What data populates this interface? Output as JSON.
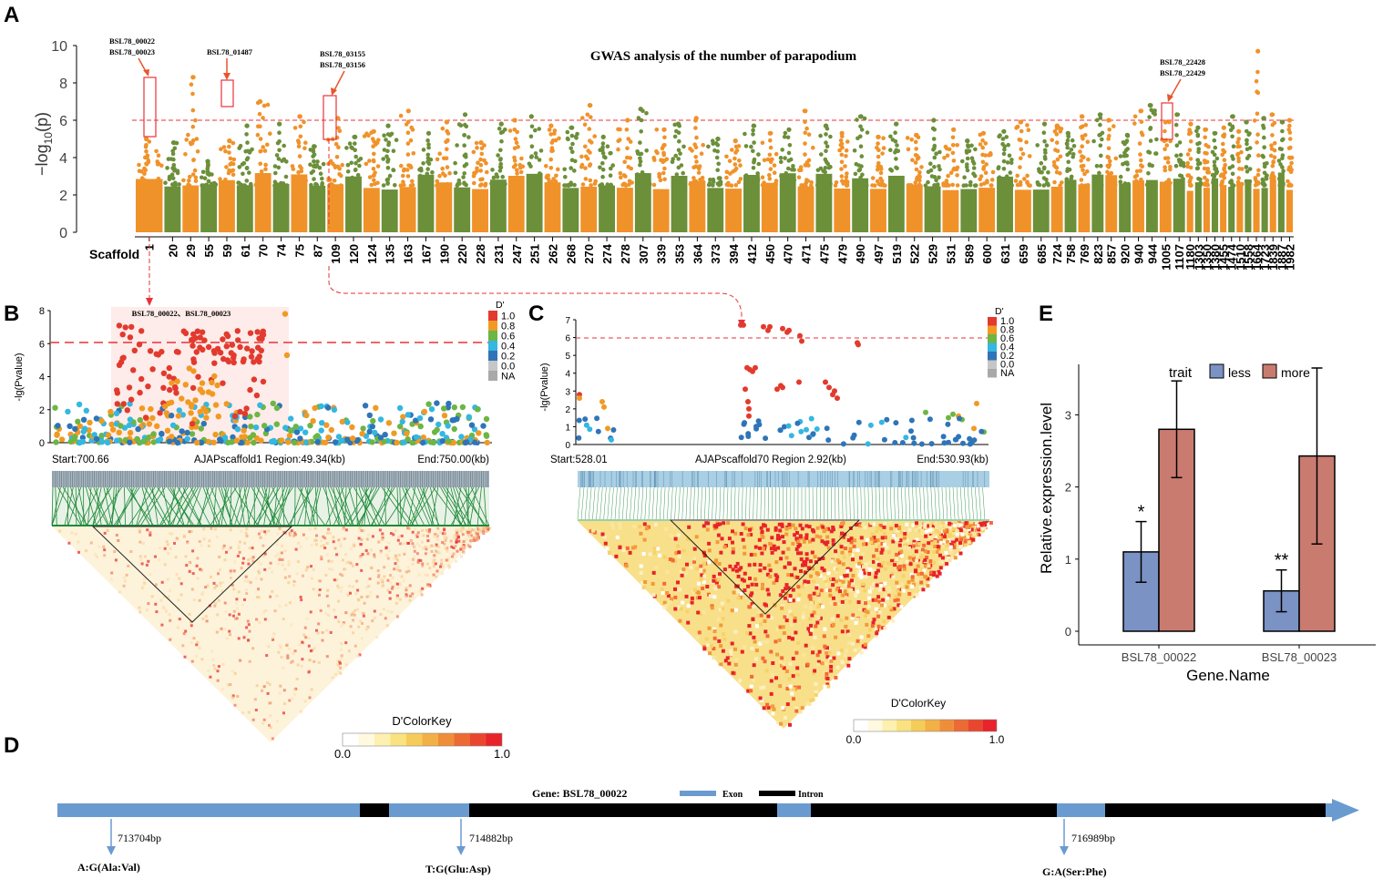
{
  "colors": {
    "orange": "#F0922A",
    "green": "#6C8F3A",
    "red_threshold": "#E8323A",
    "annot": "#E8552A",
    "less": "#7B92C4",
    "more": "#C97B70",
    "exon": "#6A9BD0",
    "intron": "#000000",
    "ld_high": "#E8232A",
    "ld_low": "#FFF9E6"
  },
  "panel_labels": {
    "a": "A",
    "b": "B",
    "c": "C",
    "d": "D",
    "e": "E"
  },
  "panelA": {
    "title": "GWAS analysis of the number of parapodium",
    "ylabel_pre": "−log",
    "ylabel_sub": "10",
    "ylabel_post": "(p)",
    "scaffold_label": "Scaffold",
    "annotations": [
      {
        "line1": "BSL78_00022",
        "line2": "BSL78_00023"
      },
      {
        "line1": "BSL78_01487",
        "line2": ""
      },
      {
        "line1": "BSL78_03155",
        "line2": "BSL78_03156"
      },
      {
        "line1": "BSL78_22428",
        "line2": "BSL78_22429"
      }
    ]
  },
  "panelB": {
    "highlight_label": "BSL78_00022、BSL78_00023",
    "ylabel": "-lg(Pvalue)",
    "start": "Start:700.66",
    "region": "AJAPscaffold1 Region:49.34(kb)",
    "end": "End:750.00(kb)",
    "legend_title": "D'",
    "legend": [
      "1.0",
      "0.8",
      "0.6",
      "0.4",
      "0.2",
      "0.0",
      "NA"
    ],
    "colorkey_title": "D'ColorKey",
    "colorkey_min": "0.0",
    "colorkey_max": "1.0"
  },
  "panelC": {
    "ylabel": "-lg(Pvalue)",
    "start": "Start:528.01",
    "region": "AJAPscaffold70 Region 2.92(kb)",
    "end": "End:530.93(kb)",
    "legend_title": "D'",
    "legend": [
      "1.0",
      "0.8",
      "0.6",
      "0.4",
      "0.2",
      "0.0",
      "NA"
    ],
    "colorkey_title": "D'ColorKey",
    "colorkey_min": "0.0",
    "colorkey_max": "1.0"
  },
  "panelD": {
    "gene_title": "Gene: BSL78_00022",
    "exon_label": "Exon",
    "intron_label": "Intron",
    "snps": [
      {
        "pos": "713704bp",
        "change": "A:G(Ala:Val)"
      },
      {
        "pos": "714882bp",
        "change": "T:G(Glu:Asp)"
      },
      {
        "pos": "716989bp",
        "change": "G:A(Ser:Phe)"
      }
    ]
  },
  "chart_data": [
    {
      "id": "A",
      "type": "scatter",
      "title": "GWAS analysis of the number of parapodium",
      "xlabel": "Scaffold",
      "ylabel": "-log10(p)",
      "ylim": [
        0,
        10
      ],
      "yticks": [
        0,
        2,
        4,
        6,
        8,
        10
      ],
      "threshold": 6,
      "categories": [
        "1",
        "20",
        "29",
        "55",
        "59",
        "61",
        "70",
        "74",
        "75",
        "87",
        "109",
        "120",
        "124",
        "135",
        "163",
        "167",
        "190",
        "220",
        "228",
        "231",
        "247",
        "251",
        "262",
        "268",
        "270",
        "274",
        "278",
        "307",
        "339",
        "353",
        "364",
        "373",
        "394",
        "412",
        "450",
        "470",
        "471",
        "475",
        "479",
        "490",
        "497",
        "519",
        "522",
        "529",
        "531",
        "589",
        "600",
        "631",
        "659",
        "685",
        "724",
        "758",
        "769",
        "823",
        "857",
        "920",
        "940",
        "944",
        "1005",
        "1107",
        "1180",
        "1303",
        "1350",
        "1380",
        "1455",
        "1474",
        "1510",
        "1558",
        "1664",
        "1723",
        "1839",
        "1887",
        "1982"
      ],
      "peaks": [
        5.0,
        4.8,
        8.3,
        3.8,
        4.9,
        5.7,
        7.0,
        5.8,
        6.2,
        4.6,
        6.1,
        5.1,
        5.4,
        5.7,
        6.5,
        5.3,
        5.9,
        6.3,
        4.8,
        5.8,
        6.0,
        6.2,
        5.7,
        5.6,
        6.8,
        5.1,
        6.0,
        6.6,
        5.5,
        5.8,
        6.1,
        5.0,
        4.9,
        5.7,
        5.3,
        5.5,
        6.5,
        5.7,
        5.3,
        6.2,
        5.1,
        5.8,
        5.2,
        6.0,
        5.5,
        4.9,
        5.3,
        5.4,
        5.9,
        5.8,
        5.7,
        5.3,
        6.2,
        6.3,
        6.0,
        5.2,
        6.5,
        6.8,
        5.9,
        6.3,
        5.8,
        5.6,
        5.5,
        5.3,
        5.6,
        6.2,
        5.4,
        5.9,
        9.7,
        6.1,
        6.3,
        5.9,
        6.0
      ],
      "highlighted_loci": [
        "BSL78_00022",
        "BSL78_00023",
        "BSL78_01487",
        "BSL78_03155",
        "BSL78_03156",
        "BSL78_22428",
        "BSL78_22429"
      ]
    },
    {
      "id": "B",
      "type": "scatter",
      "title": "AJAPscaffold1 Region:49.34(kb)",
      "xlabel": "Start:700.66 - End:750.00(kb)",
      "ylabel": "-lg(Pvalue)",
      "ylim": [
        0,
        8
      ],
      "yticks": [
        0,
        2,
        4,
        6,
        8
      ],
      "threshold": 6,
      "legend": [
        "1.0",
        "0.8",
        "0.6",
        "0.4",
        "0.2",
        "0.0",
        "NA"
      ]
    },
    {
      "id": "C",
      "type": "scatter",
      "title": "AJAPscaffold70 Region 2.92(kb)",
      "xlabel": "Start:528.01 - End:530.93(kb)",
      "ylabel": "-lg(Pvalue)",
      "ylim": [
        0,
        7
      ],
      "yticks": [
        0,
        1,
        2,
        3,
        4,
        5,
        6,
        7
      ],
      "threshold": 6,
      "legend": [
        "1.0",
        "0.8",
        "0.6",
        "0.4",
        "0.2",
        "0.0",
        "NA"
      ]
    },
    {
      "id": "E",
      "type": "bar",
      "title": "",
      "xlabel": "Gene.Name",
      "ylabel": "Relative.expression.level",
      "ylim": [
        0,
        3.7
      ],
      "yticks": [
        0,
        1,
        2,
        3
      ],
      "legend_title": "trait",
      "categories": [
        "BSL78_00022",
        "BSL78_00023"
      ],
      "series": [
        {
          "name": "less",
          "values": [
            1.1,
            0.56
          ],
          "errors": [
            0.42,
            0.29
          ],
          "sig": [
            "*",
            "**"
          ]
        },
        {
          "name": "more",
          "values": [
            2.8,
            2.43
          ],
          "errors": [
            0.67,
            1.22
          ],
          "sig": [
            "",
            ""
          ]
        }
      ]
    }
  ]
}
